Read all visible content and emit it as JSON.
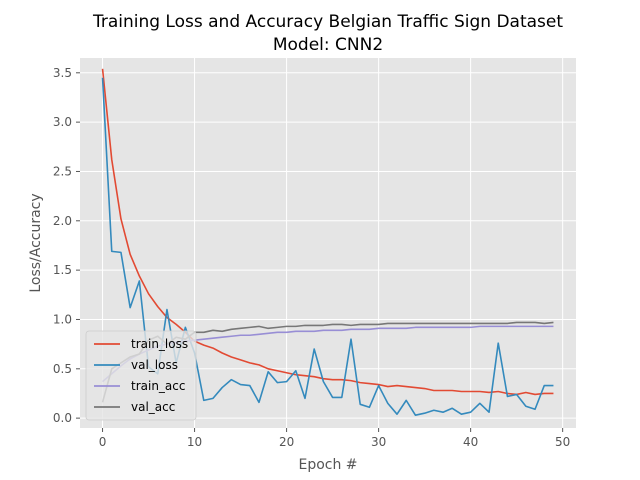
{
  "chart_data": {
    "type": "line",
    "title": "Training Loss and Accuracy Belgian Traffic Sign Dataset",
    "subtitle": "Model: CNN2",
    "xlabel": "Epoch #",
    "ylabel": "Loss/Accuracy",
    "xlim": [
      -2.45,
      51.45
    ],
    "ylim": [
      -0.1,
      3.65
    ],
    "xticks": [
      "0",
      "10",
      "20",
      "30",
      "40",
      "50"
    ],
    "yticks": [
      "0.0",
      "0.5",
      "1.0",
      "1.5",
      "2.0",
      "2.5",
      "3.0",
      "3.5"
    ],
    "grid": true,
    "legend_position": "lower-left",
    "colors": {
      "plot_background": "#e5e5e5",
      "grid": "#ffffff",
      "text": "#555555"
    },
    "x": [
      0,
      1,
      2,
      3,
      4,
      5,
      6,
      7,
      8,
      9,
      10,
      11,
      12,
      13,
      14,
      15,
      16,
      17,
      18,
      19,
      20,
      21,
      22,
      23,
      24,
      25,
      26,
      27,
      28,
      29,
      30,
      31,
      32,
      33,
      34,
      35,
      36,
      37,
      38,
      39,
      40,
      41,
      42,
      43,
      44,
      45,
      46,
      47,
      48,
      49
    ],
    "series": [
      {
        "name": "train_loss",
        "color": "#e24a33",
        "values": [
          3.54,
          2.62,
          2.02,
          1.66,
          1.44,
          1.26,
          1.13,
          1.02,
          0.95,
          0.87,
          0.78,
          0.74,
          0.71,
          0.66,
          0.62,
          0.59,
          0.56,
          0.54,
          0.5,
          0.48,
          0.46,
          0.44,
          0.43,
          0.42,
          0.4,
          0.39,
          0.39,
          0.38,
          0.36,
          0.35,
          0.34,
          0.32,
          0.33,
          0.32,
          0.31,
          0.3,
          0.28,
          0.28,
          0.28,
          0.27,
          0.27,
          0.27,
          0.26,
          0.27,
          0.25,
          0.24,
          0.26,
          0.24,
          0.25,
          0.25
        ]
      },
      {
        "name": "val_loss",
        "color": "#348abd",
        "values": [
          3.45,
          1.69,
          1.68,
          1.12,
          1.39,
          0.52,
          0.45,
          1.1,
          0.56,
          0.92,
          0.66,
          0.18,
          0.2,
          0.31,
          0.39,
          0.34,
          0.33,
          0.16,
          0.47,
          0.36,
          0.37,
          0.48,
          0.2,
          0.7,
          0.37,
          0.21,
          0.21,
          0.8,
          0.14,
          0.11,
          0.33,
          0.15,
          0.04,
          0.18,
          0.03,
          0.05,
          0.08,
          0.06,
          0.1,
          0.04,
          0.06,
          0.15,
          0.06,
          0.76,
          0.22,
          0.24,
          0.12,
          0.09,
          0.33,
          0.33
        ]
      },
      {
        "name": "train_acc",
        "color": "#988ed5",
        "values": [
          0.37,
          0.45,
          0.53,
          0.6,
          0.65,
          0.69,
          0.73,
          0.75,
          0.77,
          0.78,
          0.79,
          0.8,
          0.81,
          0.82,
          0.83,
          0.84,
          0.84,
          0.85,
          0.86,
          0.87,
          0.87,
          0.88,
          0.88,
          0.88,
          0.89,
          0.89,
          0.89,
          0.9,
          0.9,
          0.9,
          0.91,
          0.91,
          0.91,
          0.91,
          0.92,
          0.92,
          0.92,
          0.92,
          0.92,
          0.92,
          0.92,
          0.93,
          0.93,
          0.93,
          0.93,
          0.93,
          0.93,
          0.93,
          0.93,
          0.93
        ]
      },
      {
        "name": "val_acc",
        "color": "#777777",
        "values": [
          0.16,
          0.5,
          0.56,
          0.62,
          0.65,
          0.79,
          0.83,
          0.75,
          0.82,
          0.8,
          0.87,
          0.87,
          0.89,
          0.88,
          0.9,
          0.91,
          0.92,
          0.93,
          0.91,
          0.92,
          0.93,
          0.93,
          0.94,
          0.94,
          0.94,
          0.95,
          0.95,
          0.94,
          0.95,
          0.95,
          0.95,
          0.96,
          0.96,
          0.96,
          0.96,
          0.96,
          0.96,
          0.96,
          0.96,
          0.96,
          0.96,
          0.96,
          0.96,
          0.96,
          0.96,
          0.97,
          0.97,
          0.97,
          0.96,
          0.97
        ]
      }
    ]
  }
}
